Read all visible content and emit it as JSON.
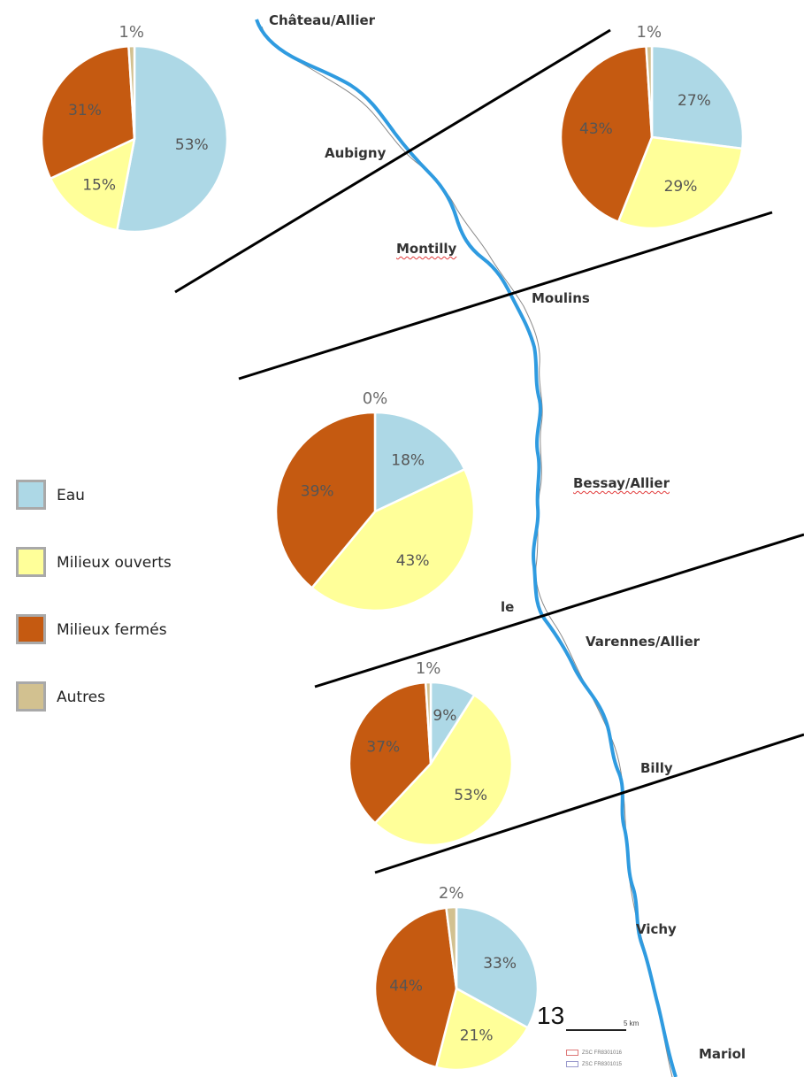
{
  "towns": {
    "chateau": "Château/Allier",
    "aubigny": "Aubigny",
    "montilly": "Montilly",
    "moulins": "Moulins",
    "bessay": "Bessay/Allier",
    "le": "le",
    "varennes": "Varennes/Allier",
    "billy": "Billy",
    "vichy": "Vichy",
    "mariol": "Mariol"
  },
  "legend": {
    "items": [
      {
        "label": "Eau",
        "color": "#add8e6"
      },
      {
        "label": "Milieux ouverts",
        "color": "#ffff99"
      },
      {
        "label": "Milieux fermés",
        "color": "#c55a11"
      },
      {
        "label": "Autres",
        "color": "#d2c190"
      }
    ]
  },
  "page_number": "13",
  "scale_label": "5 km",
  "mini_legend": [
    "ZSC FR8301016",
    "ZSC FR8301015"
  ],
  "colors": {
    "river": "#2f9be0",
    "divider": "#000000",
    "eau": "#add8e6",
    "ouverts": "#ffff99",
    "fermes": "#c55a11",
    "autres": "#d2c190"
  },
  "chart_data": [
    {
      "type": "pie",
      "categories": [
        "Eau",
        "Milieux ouverts",
        "Milieux fermés",
        "Autres"
      ],
      "values": [
        53,
        15,
        31,
        1
      ],
      "labels": [
        "53%",
        "15%",
        "31%",
        "1%"
      ]
    },
    {
      "type": "pie",
      "categories": [
        "Eau",
        "Milieux ouverts",
        "Milieux fermés",
        "Autres"
      ],
      "values": [
        27,
        29,
        43,
        1
      ],
      "labels": [
        "27%",
        "29%",
        "43%",
        "1%"
      ]
    },
    {
      "type": "pie",
      "categories": [
        "Eau",
        "Milieux ouverts",
        "Milieux fermés",
        "Autres"
      ],
      "values": [
        18,
        43,
        39,
        0
      ],
      "labels": [
        "18%",
        "43%",
        "39%",
        "0%"
      ]
    },
    {
      "type": "pie",
      "categories": [
        "Eau",
        "Milieux ouverts",
        "Milieux fermés",
        "Autres"
      ],
      "values": [
        9,
        53,
        37,
        1
      ],
      "labels": [
        "9%",
        "53%",
        "37%",
        "1%"
      ]
    },
    {
      "type": "pie",
      "categories": [
        "Eau",
        "Milieux ouverts",
        "Milieux fermés",
        "Autres"
      ],
      "values": [
        33,
        21,
        44,
        2
      ],
      "labels": [
        "33%",
        "21%",
        "44%",
        "2%"
      ]
    }
  ]
}
